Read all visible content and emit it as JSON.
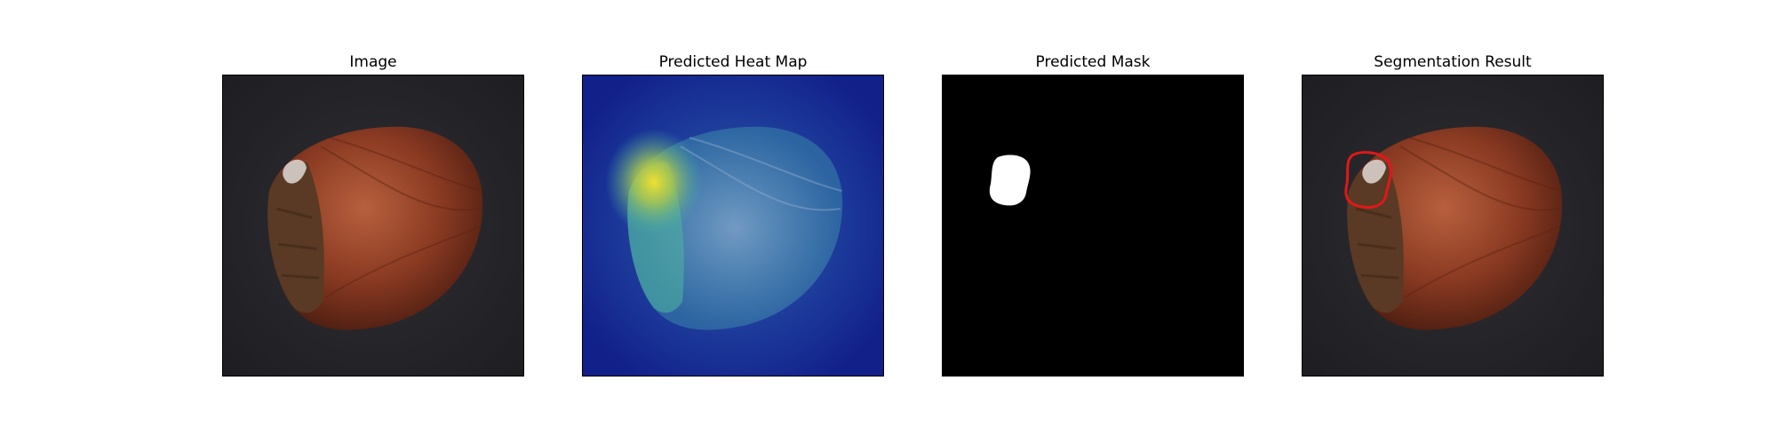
{
  "panels": [
    {
      "title": "Image"
    },
    {
      "title": "Predicted Heat Map"
    },
    {
      "title": "Predicted Mask"
    },
    {
      "title": "Segmentation Result"
    }
  ],
  "colors": {
    "background_dark": "#26262a",
    "nut": "#8a3a22",
    "heat_low": "#14248c",
    "heat_mid": "#3fb0b0",
    "heat_high": "#e0d840",
    "mask": "#ffffff",
    "outline": "#e01818"
  }
}
